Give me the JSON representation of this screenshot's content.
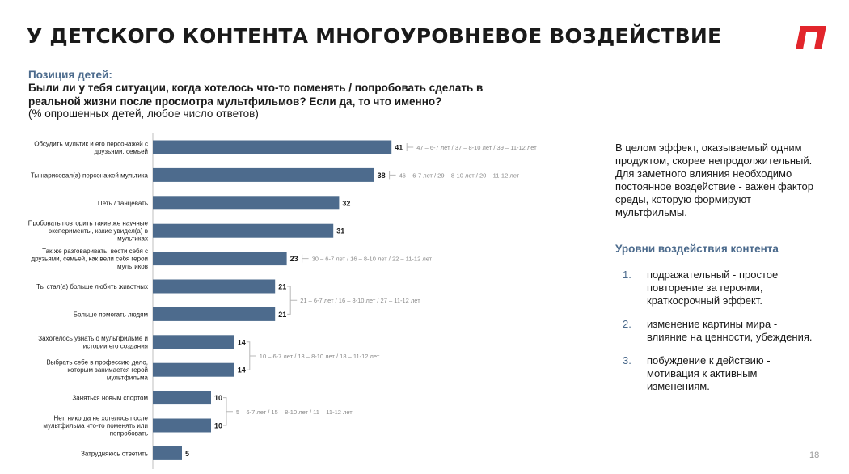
{
  "header": {
    "title": "У ДЕТСКОГО КОНТЕНТА МНОГОУРОВНЕВОЕ ВОЗДЕЙСТВИЕ",
    "subtitle": "Позиция детей:",
    "question": "Были ли у тебя ситуации, когда хотелось что-то поменять / попробовать сделать в реальной жизни после просмотра мультфильмов? Если да, то что именно?",
    "note": "(% опрошенных детей, любое число ответов)"
  },
  "colors": {
    "bar": "#4d6b8d",
    "accent": "#4b6a8c",
    "logo": "#e2252b"
  },
  "chart_data": {
    "type": "bar",
    "orientation": "horizontal",
    "unit": "%",
    "xlim": [
      0,
      50
    ],
    "categories": [
      "Обсудить мультик и его персонажей с друзьями, семьей",
      "Ты нарисовал(а) персонажей мультика",
      "Петь / танцевать",
      "Пробовать повторить такие же научные эксперименты, какие увидел(а) в мультиках",
      "Так же разговаривать, вести себя с друзьями, семьей, как вели себя герои мультиков",
      "Ты стал(а) больше любить животных",
      "Больше помогать людям",
      "Захотелось узнать о мультфильме и истории его создания",
      "Выбрать себе в профессию дело, которым занимается герой мультфильма",
      "Заняться новым спортом",
      "Нет, никогда не хотелось после мультфильма что-то поменять или попробовать",
      "Затрудняюсь ответить"
    ],
    "values": [
      41,
      38,
      32,
      31,
      23,
      21,
      21,
      14,
      14,
      10,
      10,
      5
    ],
    "age_breakdowns": [
      {
        "rows": [
          0,
          0
        ],
        "text": "47 – 6-7 лет  /  37 – 8-10 лет  /  39 – 11-12 лет"
      },
      {
        "rows": [
          1,
          1
        ],
        "text": "46 – 6-7 лет  /  29 – 8-10 лет  /  20 – 11-12 лет"
      },
      {
        "rows": [
          4,
          4
        ],
        "text": "30 – 6-7 лет  /  16 – 8-10 лет  /  22 – 11-12 лет"
      },
      {
        "rows": [
          5,
          6
        ],
        "text": "21 – 6-7 лет  /  16 – 8-10 лет  /  27 – 11-12 лет"
      },
      {
        "rows": [
          7,
          8
        ],
        "text": "10 – 6-7 лет  /  13 – 8-10 лет  /  18 – 11-12 лет"
      },
      {
        "rows": [
          9,
          10
        ],
        "text": "5 – 6-7 лет  /  15 – 8-10 лет  /  11 – 11-12 лет"
      }
    ]
  },
  "summary": "В целом эффект, оказываемый одним продуктом, скорее непродолжительный. Для заметного влияния необходимо постоянное воздействие - важен фактор среды, которую формируют мультфильмы.",
  "levels": {
    "title": "Уровни воздействия контента",
    "items": [
      {
        "num": "1.",
        "text": "подражательный - простое повторение за героями, краткосрочный эффект."
      },
      {
        "num": "2.",
        "text": "изменение картины мира - влияние на ценности, убеждения."
      },
      {
        "num": "3.",
        "text": "побуждение к действию - мотивация к активным изменениям."
      }
    ]
  },
  "page_number": "18"
}
